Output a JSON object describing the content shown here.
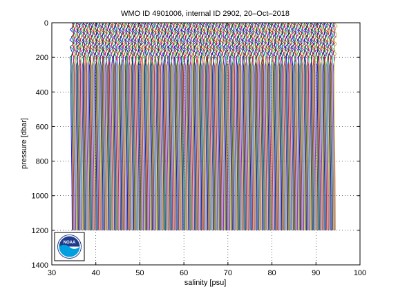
{
  "chart_data": {
    "type": "line",
    "title": "WMO ID 4901006, internal ID 2902, 20–Oct–2018",
    "xlabel": "salinity [psu]",
    "ylabel": "pressure [dbar]",
    "xlim": [
      30,
      100
    ],
    "ylim": [
      0,
      1400
    ],
    "y_reversed": true,
    "grid": true,
    "grid_style": "dotted",
    "x_ticks": [
      "30",
      "40",
      "50",
      "60",
      "70",
      "80",
      "90",
      "100"
    ],
    "y_ticks": [
      "0",
      "200",
      "400",
      "600",
      "800",
      "1000",
      "1200",
      "1400"
    ],
    "profile_offsets": {
      "note": "each profile is the base salinity profile shifted right by a constant offset",
      "first_offset": 0,
      "step": 0.2,
      "count": 300
    },
    "base_profile": {
      "pressure": [
        0,
        20,
        40,
        60,
        80,
        100,
        120,
        140,
        160,
        180,
        200,
        250,
        300,
        400,
        500,
        600,
        700,
        800,
        900,
        1000,
        1100,
        1200
      ],
      "salinity": [
        34.6,
        34.7,
        34.5,
        34.8,
        34.6,
        34.4,
        34.7,
        34.3,
        34.6,
        34.5,
        34.4,
        34.35,
        34.3,
        34.32,
        34.35,
        34.4,
        34.45,
        34.5,
        34.55,
        34.58,
        34.6,
        34.62
      ]
    },
    "series_colors": [
      "#0000ff",
      "#008000",
      "#ff0000",
      "#00bfbf",
      "#bf00bf",
      "#bfbf00",
      "#404040"
    ]
  },
  "logo": {
    "text": "NOAA",
    "colors": {
      "top": "#1f3b8c",
      "bottom": "#00a0e0",
      "ring": "#ffffff"
    }
  }
}
